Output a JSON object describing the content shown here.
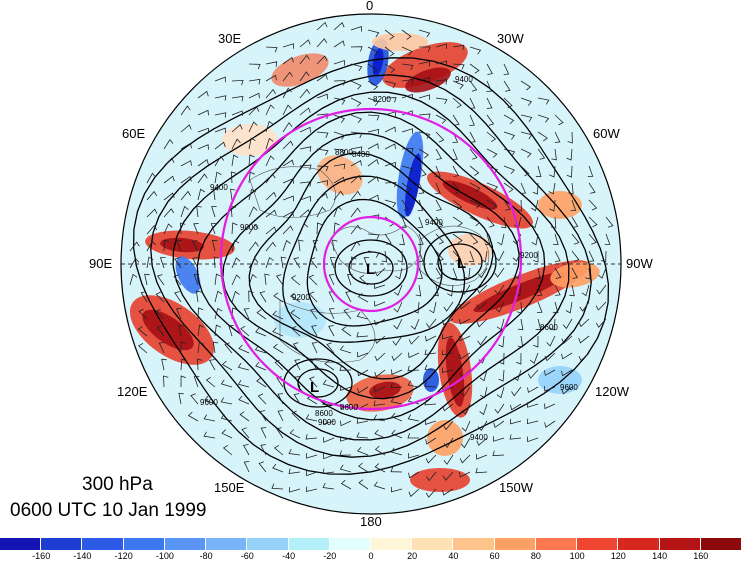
{
  "map": {
    "lon_labels": {
      "n": "0",
      "nne": "30W",
      "ene": "60W",
      "e": "90W",
      "ese": "120W",
      "sse": "150W",
      "s": "180",
      "ssw": "150E",
      "wsw": "120E",
      "w": "90E",
      "wnw": "60E",
      "nnw": "30E"
    },
    "contour_labels": [
      "9400",
      "8800",
      "8600",
      "9000",
      "9200",
      "9600",
      "8400",
      "8200",
      "9400",
      "9200",
      "8600",
      "9000",
      "9400",
      "9400",
      "8600",
      "9600"
    ],
    "pressure_systems": [
      {
        "label": "L"
      },
      {
        "label": "L"
      },
      {
        "label": "L"
      }
    ],
    "colors": {
      "ring": "#e21ee2",
      "contour": "#000000",
      "positive_max": "#a50f15",
      "negative_max": "#0a1acc"
    }
  },
  "caption": {
    "level": "300 hPa",
    "time": "0600 UTC 10 Jan 1999"
  },
  "colorbar": {
    "labels": [
      "-160",
      "-140",
      "-120",
      "-100",
      "-80",
      "-60",
      "-40",
      "-20",
      "0",
      "20",
      "40",
      "60",
      "80",
      "100",
      "120",
      "140",
      "160"
    ],
    "colors": [
      "#1414b4",
      "#1e3cd2",
      "#2d5ae6",
      "#3c78f0",
      "#5a96f5",
      "#78b4fa",
      "#96d2fa",
      "#b4f0fa",
      "#e1ffff",
      "#fff5d7",
      "#ffe1b4",
      "#ffc38c",
      "#ffa064",
      "#ff7850",
      "#f04632",
      "#d7281e",
      "#b41414",
      "#8c0a0a"
    ]
  }
}
